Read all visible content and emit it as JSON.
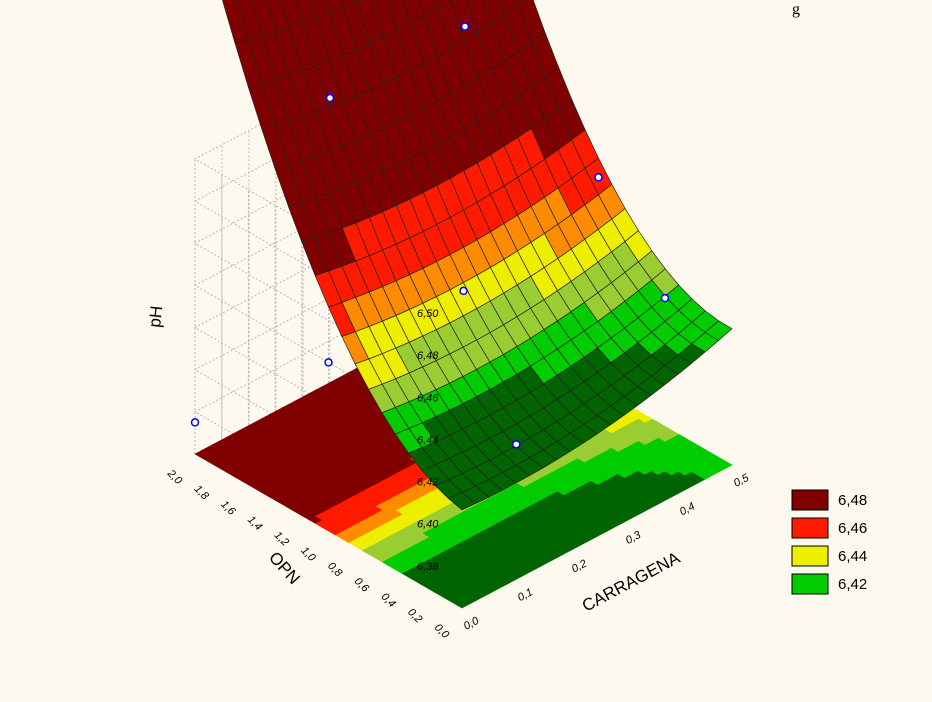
{
  "chart_data": {
    "type": "surface3d",
    "title_fragment": "g",
    "x_axis": {
      "label": "CARRAGENA",
      "range": [
        0.0,
        0.5
      ],
      "ticks": [
        "0,0",
        "0,1",
        "0,2",
        "0,3",
        "0,4",
        "0,5"
      ]
    },
    "y_axis": {
      "label": "OPN",
      "range": [
        0.0,
        2.0
      ],
      "ticks": [
        "0,0",
        "0,2",
        "0,4",
        "0,6",
        "0,8",
        "1,0",
        "1,2",
        "1,4",
        "1,6",
        "1,8",
        "2,0"
      ]
    },
    "z_axis": {
      "label": "pH",
      "range": [
        6.36,
        6.5
      ],
      "ticks": [
        "6,38",
        "6,40",
        "6,42",
        "6,44",
        "6,46",
        "6,48",
        "6,50"
      ]
    },
    "legend": [
      {
        "label": "6,48",
        "color": "#800000"
      },
      {
        "label": "6,46",
        "color": "#ff1a00"
      },
      {
        "label": "6,44",
        "color": "#eeee00"
      },
      {
        "label": "6,42",
        "color": "#00cc00"
      }
    ],
    "extra_colors": {
      "below": "#006400",
      "between_44_46": "#ff8c00",
      "between_42_44": "#9acd32"
    },
    "observed_points": [
      {
        "carragena": 0.15,
        "opn": 0.2,
        "ph": 6.41
      },
      {
        "carragena": 0.0,
        "opn": 2.0,
        "ph": 6.375
      },
      {
        "carragena": 0.0,
        "opn": 1.0,
        "ph": 6.44
      },
      {
        "carragena": 0.25,
        "opn": 2.0,
        "ph": 6.495
      },
      {
        "carragena": 0.25,
        "opn": 1.0,
        "ph": 6.44
      },
      {
        "carragena": 0.45,
        "opn": 0.3,
        "ph": 6.435
      },
      {
        "carragena": 0.5,
        "opn": 1.0,
        "ph": 6.46
      },
      {
        "carragena": 0.5,
        "opn": 2.0,
        "ph": 6.495
      }
    ],
    "grid": true,
    "legend_position": "right"
  }
}
